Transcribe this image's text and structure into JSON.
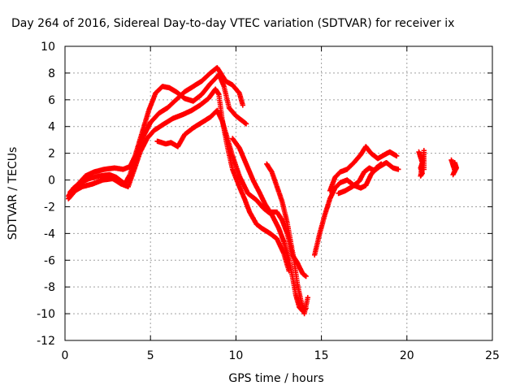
{
  "chart_data": {
    "type": "scatter",
    "title": "Day 264 of 2016, Sidereal Day-to-day VTEC variation (SDTVAR) for receiver ix",
    "xlabel": "GPS time / hours",
    "ylabel": "SDTVAR / TECUs",
    "xlim": [
      0,
      25
    ],
    "ylim": [
      -12,
      10
    ],
    "xticks": [
      0,
      5,
      10,
      15,
      20,
      25
    ],
    "yticks": [
      -12,
      -10,
      -8,
      -6,
      -4,
      -2,
      0,
      2,
      4,
      6,
      8,
      10
    ],
    "grid": true,
    "marker": "+",
    "color": "#ff0000",
    "series": [
      {
        "points": [
          [
            0.2,
            -1.2
          ],
          [
            0.5,
            -0.6
          ],
          [
            0.9,
            -0.2
          ],
          [
            1.4,
            0.1
          ],
          [
            2.0,
            0.3
          ],
          [
            2.6,
            0.4
          ],
          [
            3.0,
            0.2
          ],
          [
            3.5,
            -0.3
          ],
          [
            3.8,
            0.4
          ],
          [
            4.2,
            2.0
          ],
          [
            4.6,
            3.3
          ],
          [
            5.0,
            4.3
          ],
          [
            5.5,
            5.0
          ],
          [
            6.0,
            5.4
          ],
          [
            6.5,
            6.0
          ],
          [
            7.0,
            6.6
          ],
          [
            7.5,
            7.0
          ],
          [
            8.0,
            7.4
          ],
          [
            8.5,
            8.0
          ],
          [
            8.9,
            8.4
          ],
          [
            9.1,
            8.0
          ],
          [
            9.4,
            7.4
          ],
          [
            9.8,
            7.1
          ],
          [
            10.2,
            6.5
          ],
          [
            10.4,
            5.6
          ]
        ]
      },
      {
        "points": [
          [
            0.2,
            -1.4
          ],
          [
            0.6,
            -0.8
          ],
          [
            1.0,
            -0.5
          ],
          [
            1.6,
            -0.3
          ],
          [
            2.2,
            0.0
          ],
          [
            2.8,
            0.1
          ],
          [
            3.3,
            -0.3
          ],
          [
            3.7,
            -0.5
          ],
          [
            4.0,
            0.6
          ],
          [
            4.4,
            2.1
          ],
          [
            4.8,
            3.1
          ],
          [
            5.2,
            3.7
          ],
          [
            5.8,
            4.2
          ],
          [
            6.3,
            4.6
          ],
          [
            6.9,
            4.9
          ],
          [
            7.4,
            5.2
          ],
          [
            7.9,
            5.6
          ],
          [
            8.4,
            6.1
          ],
          [
            8.8,
            6.8
          ],
          [
            9.0,
            6.4
          ],
          [
            9.2,
            4.5
          ],
          [
            9.5,
            2.5
          ],
          [
            9.8,
            0.8
          ],
          [
            10.2,
            -0.5
          ],
          [
            10.5,
            -1.4
          ],
          [
            10.8,
            -2.4
          ],
          [
            11.2,
            -3.3
          ],
          [
            11.5,
            -3.6
          ],
          [
            12.0,
            -4.0
          ],
          [
            12.4,
            -4.4
          ],
          [
            12.8,
            -5.5
          ],
          [
            13.1,
            -6.8
          ]
        ]
      },
      {
        "points": [
          [
            0.3,
            -0.9
          ],
          [
            0.7,
            -0.4
          ],
          [
            1.2,
            0.3
          ],
          [
            1.7,
            0.6
          ],
          [
            2.3,
            0.8
          ],
          [
            2.9,
            0.9
          ],
          [
            3.4,
            0.8
          ],
          [
            3.8,
            1.0
          ],
          [
            4.1,
            1.8
          ],
          [
            4.5,
            3.5
          ],
          [
            4.9,
            5.2
          ],
          [
            5.3,
            6.5
          ],
          [
            5.7,
            7.0
          ],
          [
            6.1,
            6.9
          ],
          [
            6.5,
            6.6
          ],
          [
            7.0,
            6.1
          ],
          [
            7.5,
            5.9
          ],
          [
            8.0,
            6.4
          ],
          [
            8.5,
            7.2
          ],
          [
            8.8,
            7.6
          ],
          [
            9.0,
            7.9
          ],
          [
            9.3,
            7.0
          ],
          [
            9.6,
            5.4
          ],
          [
            10.0,
            4.8
          ],
          [
            10.6,
            4.2
          ]
        ]
      },
      {
        "points": [
          [
            5.4,
            2.9
          ],
          [
            5.9,
            2.7
          ],
          [
            6.2,
            2.8
          ],
          [
            6.6,
            2.5
          ],
          [
            7.0,
            3.4
          ],
          [
            7.5,
            3.9
          ],
          [
            8.0,
            4.3
          ],
          [
            8.5,
            4.7
          ],
          [
            8.9,
            5.2
          ],
          [
            9.2,
            4.4
          ],
          [
            9.5,
            3.1
          ],
          [
            9.8,
            1.8
          ],
          [
            10.2,
            0.3
          ],
          [
            10.7,
            -1.0
          ],
          [
            11.2,
            -1.5
          ],
          [
            11.6,
            -2.1
          ],
          [
            12.1,
            -2.6
          ],
          [
            12.5,
            -3.6
          ],
          [
            12.8,
            -4.6
          ],
          [
            13.1,
            -6.0
          ],
          [
            13.3,
            -7.2
          ],
          [
            13.5,
            -8.6
          ],
          [
            13.7,
            -9.5
          ],
          [
            13.9,
            -9.8
          ],
          [
            14.1,
            -9.6
          ]
        ]
      },
      {
        "points": [
          [
            9.8,
            3.1
          ],
          [
            10.2,
            2.4
          ],
          [
            10.6,
            1.2
          ],
          [
            11.0,
            0.0
          ],
          [
            11.4,
            -1.0
          ],
          [
            11.7,
            -1.8
          ],
          [
            12.0,
            -2.4
          ],
          [
            12.4,
            -2.4
          ],
          [
            12.7,
            -3.0
          ],
          [
            13.0,
            -4.0
          ],
          [
            13.3,
            -5.6
          ],
          [
            13.6,
            -6.2
          ],
          [
            13.9,
            -7.0
          ],
          [
            14.1,
            -7.2
          ]
        ]
      },
      {
        "points": [
          [
            11.8,
            1.2
          ],
          [
            12.1,
            0.6
          ],
          [
            12.4,
            -0.5
          ],
          [
            12.7,
            -1.6
          ],
          [
            13.0,
            -3.2
          ],
          [
            13.2,
            -4.6
          ],
          [
            13.4,
            -6.0
          ],
          [
            13.6,
            -7.8
          ],
          [
            13.8,
            -9.0
          ],
          [
            14.0,
            -10.0
          ],
          [
            14.2,
            -8.8
          ]
        ]
      },
      {
        "points": [
          [
            14.6,
            -5.6
          ],
          [
            14.9,
            -4.0
          ],
          [
            15.2,
            -2.6
          ],
          [
            15.5,
            -1.4
          ],
          [
            15.8,
            -0.6
          ],
          [
            16.1,
            -0.2
          ],
          [
            16.5,
            0.0
          ],
          [
            16.9,
            -0.4
          ],
          [
            17.3,
            -0.6
          ],
          [
            17.6,
            -0.4
          ],
          [
            17.9,
            0.4
          ],
          [
            18.2,
            0.9
          ],
          [
            18.5,
            1.2
          ]
        ]
      },
      {
        "points": [
          [
            15.5,
            -0.8
          ],
          [
            15.8,
            0.2
          ],
          [
            16.1,
            0.6
          ],
          [
            16.5,
            0.8
          ],
          [
            16.9,
            1.3
          ],
          [
            17.3,
            1.9
          ],
          [
            17.6,
            2.5
          ],
          [
            17.9,
            2.0
          ],
          [
            18.3,
            1.6
          ],
          [
            18.7,
            1.9
          ],
          [
            19.0,
            2.1
          ],
          [
            19.4,
            1.8
          ]
        ]
      },
      {
        "points": [
          [
            16.0,
            -1.0
          ],
          [
            16.4,
            -0.8
          ],
          [
            16.8,
            -0.5
          ],
          [
            17.2,
            -0.1
          ],
          [
            17.5,
            0.6
          ],
          [
            17.8,
            0.9
          ],
          [
            18.1,
            0.7
          ],
          [
            18.4,
            1.0
          ],
          [
            18.8,
            1.3
          ],
          [
            19.2,
            0.9
          ],
          [
            19.5,
            0.8
          ]
        ]
      },
      {
        "points": [
          [
            20.7,
            2.1
          ],
          [
            20.8,
            1.7
          ],
          [
            20.9,
            1.3
          ],
          [
            20.8,
            0.9
          ],
          [
            20.9,
            0.5
          ],
          [
            20.8,
            0.3
          ],
          [
            21.0,
            2.2
          ],
          [
            21.0,
            0.8
          ]
        ]
      },
      {
        "points": [
          [
            22.6,
            1.5
          ],
          [
            22.7,
            1.1
          ],
          [
            22.8,
            0.7
          ],
          [
            22.7,
            0.4
          ],
          [
            22.9,
            0.9
          ],
          [
            22.8,
            1.3
          ]
        ]
      }
    ]
  }
}
